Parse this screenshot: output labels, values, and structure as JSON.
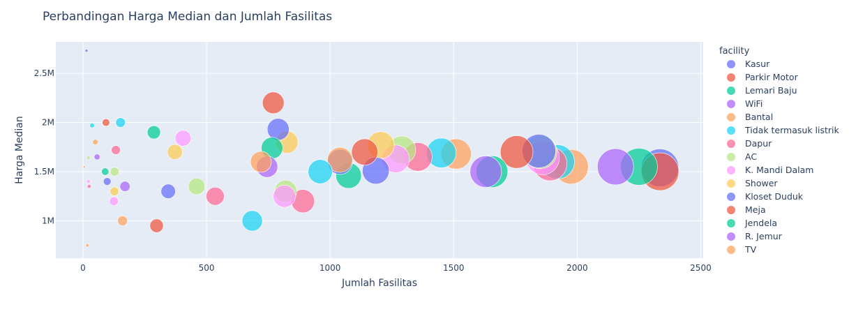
{
  "chart_data": {
    "type": "scatter",
    "title": "Perbandingan Harga Median dan Jumlah Fasilitas",
    "xlabel": "Jumlah Fasilitas",
    "ylabel": "Harga Median",
    "xlim": [
      -110,
      2510
    ],
    "ylim": [
      620000,
      2820000
    ],
    "x_ticks": [
      0,
      500,
      1000,
      1500,
      2000,
      2500
    ],
    "x_tick_labels": [
      "0",
      "500",
      "1000",
      "1500",
      "2000",
      "2500"
    ],
    "y_ticks": [
      1000000,
      1500000,
      2000000,
      2500000
    ],
    "y_tick_labels": [
      "1M",
      "1.5M",
      "2M",
      "2.5M"
    ],
    "grid": true,
    "legend_title": "facility",
    "legend_position": "right",
    "marker_size_encodes": "Jumlah Fasilitas",
    "series": [
      {
        "name": "Kasur",
        "color": "#636efa",
        "points": [
          {
            "x": 98,
            "y": 1400000
          },
          {
            "x": 345,
            "y": 1300000
          },
          {
            "x": 790,
            "y": 1930000
          },
          {
            "x": 2335,
            "y": 1540000
          }
        ]
      },
      {
        "name": "Parkir Motor",
        "color": "#EF553B",
        "points": [
          {
            "x": 5,
            "y": 1550000
          },
          {
            "x": 93,
            "y": 2000000
          },
          {
            "x": 298,
            "y": 950000
          },
          {
            "x": 770,
            "y": 2200000
          },
          {
            "x": 1140,
            "y": 1700000
          },
          {
            "x": 1755,
            "y": 1700000
          },
          {
            "x": 2335,
            "y": 1500000
          }
        ]
      },
      {
        "name": "Lemari Baju",
        "color": "#00cc96",
        "points": [
          {
            "x": 90,
            "y": 1500000
          },
          {
            "x": 287,
            "y": 1900000
          },
          {
            "x": 765,
            "y": 1740000
          },
          {
            "x": 1075,
            "y": 1460000
          },
          {
            "x": 1655,
            "y": 1500000
          },
          {
            "x": 2250,
            "y": 1550000
          }
        ]
      },
      {
        "name": "WiFi",
        "color": "#ab63fa",
        "points": [
          {
            "x": 57,
            "y": 1650000
          },
          {
            "x": 170,
            "y": 1350000
          },
          {
            "x": 745,
            "y": 1550000
          },
          {
            "x": 1630,
            "y": 1500000
          },
          {
            "x": 2155,
            "y": 1550000
          }
        ]
      },
      {
        "name": "Bantal",
        "color": "#FFA15A",
        "points": [
          {
            "x": 18,
            "y": 750000
          },
          {
            "x": 160,
            "y": 1000000
          },
          {
            "x": 720,
            "y": 1600000
          },
          {
            "x": 1510,
            "y": 1680000
          },
          {
            "x": 1975,
            "y": 1550000
          }
        ]
      },
      {
        "name": "Tidak termasuk listrik",
        "color": "#19d3f3",
        "points": [
          {
            "x": 37,
            "y": 1970000
          },
          {
            "x": 152,
            "y": 2000000
          },
          {
            "x": 685,
            "y": 1000000
          },
          {
            "x": 960,
            "y": 1500000
          },
          {
            "x": 1450,
            "y": 1690000
          },
          {
            "x": 1920,
            "y": 1600000
          }
        ]
      },
      {
        "name": "Dapur",
        "color": "#FF6692",
        "points": [
          {
            "x": 25,
            "y": 1350000
          },
          {
            "x": 133,
            "y": 1720000
          },
          {
            "x": 535,
            "y": 1250000
          },
          {
            "x": 890,
            "y": 1200000
          },
          {
            "x": 1355,
            "y": 1650000
          },
          {
            "x": 1890,
            "y": 1580000
          }
        ]
      },
      {
        "name": "AC",
        "color": "#B6E880",
        "points": [
          {
            "x": 22,
            "y": 1640000
          },
          {
            "x": 128,
            "y": 1500000
          },
          {
            "x": 460,
            "y": 1350000
          },
          {
            "x": 820,
            "y": 1300000
          },
          {
            "x": 1290,
            "y": 1720000
          },
          {
            "x": 1850,
            "y": 1700000
          }
        ]
      },
      {
        "name": "K. Mandi Dalam",
        "color": "#FF97FF",
        "points": [
          {
            "x": 22,
            "y": 1400000
          },
          {
            "x": 125,
            "y": 1200000
          },
          {
            "x": 405,
            "y": 1840000
          },
          {
            "x": 815,
            "y": 1250000
          },
          {
            "x": 1265,
            "y": 1630000
          },
          {
            "x": 1860,
            "y": 1640000
          }
        ]
      },
      {
        "name": "Shower",
        "color": "#FECB52",
        "points": [
          {
            "x": 127,
            "y": 1300000
          },
          {
            "x": 372,
            "y": 1700000
          },
          {
            "x": 825,
            "y": 1800000
          },
          {
            "x": 1205,
            "y": 1770000
          }
        ]
      },
      {
        "name": "Kloset Duduk",
        "color": "#636efa",
        "points": [
          {
            "x": 14,
            "y": 2730000
          },
          {
            "x": 1040,
            "y": 1600000
          },
          {
            "x": 1185,
            "y": 1510000
          },
          {
            "x": 1845,
            "y": 1710000
          }
        ]
      },
      {
        "name": "Meja",
        "color": "#EF553B",
        "points": []
      },
      {
        "name": "Jendela",
        "color": "#00cc96",
        "points": []
      },
      {
        "name": "R. Jemur",
        "color": "#ab63fa",
        "points": []
      },
      {
        "name": "TV",
        "color": "#FFA15A",
        "points": [
          {
            "x": 50,
            "y": 1800000
          },
          {
            "x": 1040,
            "y": 1620000
          }
        ]
      }
    ]
  }
}
